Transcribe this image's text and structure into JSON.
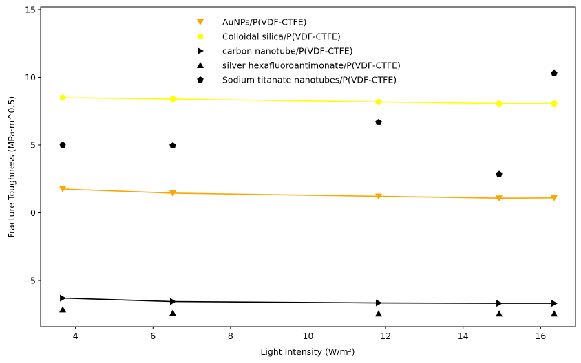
{
  "chart_data": {
    "type": "scatter",
    "title": "",
    "xlabel": "Light Intensity (W/m²)",
    "ylabel": "Fracture Toughness (MPa·m^0.5)",
    "xlim": [
      3.1,
      16.9
    ],
    "ylim": [
      -8.4,
      15.2
    ],
    "xticks": [
      4,
      6,
      8,
      10,
      12,
      14,
      16
    ],
    "yticks": [
      -5,
      0,
      5,
      10,
      15
    ],
    "grid": false,
    "legend_position": "upper-center",
    "x": [
      3.67,
      6.51,
      11.82,
      14.93,
      16.35
    ],
    "series": [
      {
        "name": "AuNPs/P(VDF-CTFE)",
        "marker": "triangle-down",
        "color": "#FFA500",
        "values": [
          1.75,
          1.45,
          1.22,
          1.08,
          1.1
        ],
        "fit_line": true
      },
      {
        "name": "Colloidal silica/P(VDF-CTFE)",
        "marker": "circle",
        "color": "#FFFF00",
        "values": [
          8.5,
          8.4,
          8.18,
          8.06,
          8.06
        ],
        "fit_line": true
      },
      {
        "name": "carbon nanotube/P(VDF-CTFE)",
        "marker": "triangle-right",
        "color": "#000000",
        "values": [
          -6.3,
          -6.55,
          -6.65,
          -6.68,
          -6.68
        ],
        "fit_line": true
      },
      {
        "name": "silver hexafluoroantimonate/P(VDF-CTFE)",
        "marker": "triangle-up",
        "color": "#000000",
        "values": [
          -7.15,
          -7.4,
          -7.45,
          -7.45,
          -7.45
        ],
        "fit_line": false
      },
      {
        "name": "Sodium titanate nanotubes/P(VDF-CTFE)",
        "marker": "pentagon",
        "color": "#000000",
        "values": [
          5.0,
          4.95,
          6.68,
          2.85,
          10.3
        ],
        "fit_line": false
      }
    ]
  }
}
